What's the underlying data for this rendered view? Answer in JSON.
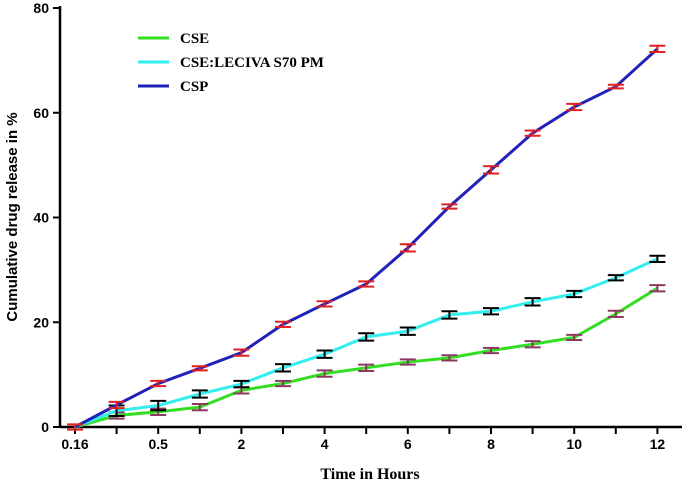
{
  "chart_data": {
    "type": "line",
    "title": "",
    "xlabel": "Time in Hours",
    "ylabel": "Cumulative drug release in %",
    "ylim": [
      0,
      80
    ],
    "y_ticks": [
      0,
      20,
      40,
      60,
      80
    ],
    "x_tick_labels": [
      "0.16",
      "0.5",
      "2",
      "4",
      "6",
      "8",
      "10",
      "12"
    ],
    "points_per_series": 15,
    "legend_position": "top-left",
    "grid": false,
    "series": [
      {
        "name": "CSE",
        "color": "#33dd22",
        "error_color": "#8b3a62",
        "values": [
          0,
          2.2,
          2.9,
          3.8,
          7.0,
          8.3,
          10.2,
          11.3,
          12.4,
          13.2,
          14.6,
          15.8,
          17.1,
          21.6,
          26.5
        ],
        "errors": [
          0.6,
          0.6,
          0.6,
          0.6,
          0.6,
          0.5,
          0.6,
          0.6,
          0.5,
          0.5,
          0.5,
          0.6,
          0.5,
          0.6,
          0.6
        ]
      },
      {
        "name": "CSE:LECIVA S70 PM",
        "color": "#33eeee",
        "error_color": "#000000",
        "values": [
          0,
          3.1,
          4.1,
          6.3,
          8.2,
          11.3,
          13.9,
          17.2,
          18.3,
          21.4,
          22.1,
          23.9,
          25.4,
          28.5,
          32.1
        ],
        "errors": [
          0.5,
          1.0,
          0.9,
          0.7,
          0.6,
          0.7,
          0.7,
          0.7,
          0.7,
          0.7,
          0.6,
          0.7,
          0.6,
          0.5,
          0.6
        ]
      },
      {
        "name": "CSP",
        "color": "#2222bb",
        "error_color": "#dd2222",
        "values": [
          0,
          4.2,
          8.3,
          11.2,
          14.2,
          19.6,
          23.5,
          27.3,
          34.2,
          42.1,
          49.1,
          56.1,
          61.1,
          65.0,
          72.2
        ],
        "errors": [
          0.5,
          0.6,
          0.5,
          0.4,
          0.6,
          0.5,
          0.5,
          0.5,
          0.7,
          0.4,
          0.7,
          0.5,
          0.6,
          0.3,
          0.6
        ]
      }
    ]
  }
}
